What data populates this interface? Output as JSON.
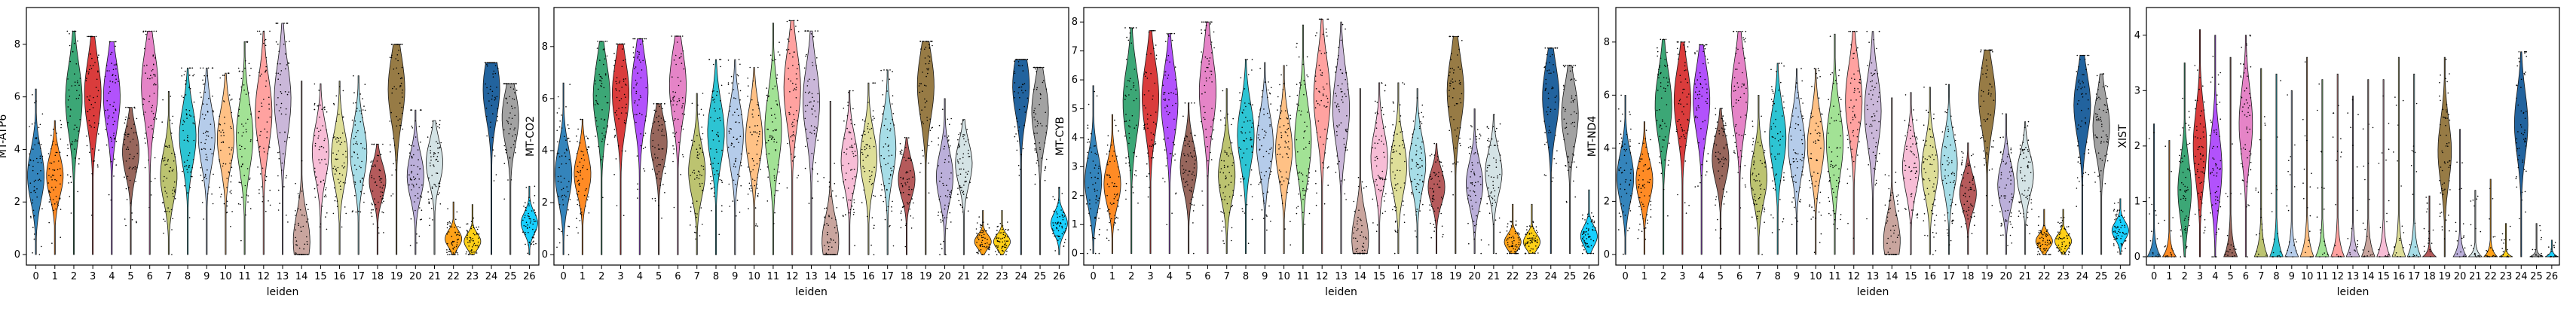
{
  "chart_data": [
    {
      "type": "violin",
      "ylabel": "MT-ATP6",
      "xlabel": "leiden",
      "ylim": [
        -0.4,
        9.4
      ],
      "yticks": [
        0,
        2,
        4,
        6,
        8
      ],
      "categories": [
        "0",
        "1",
        "2",
        "3",
        "4",
        "5",
        "6",
        "7",
        "8",
        "9",
        "10",
        "11",
        "12",
        "13",
        "14",
        "15",
        "16",
        "17",
        "18",
        "19",
        "20",
        "21",
        "22",
        "23",
        "24",
        "25",
        "26"
      ],
      "medians": [
        3.0,
        3.0,
        5.9,
        6.1,
        6.0,
        3.9,
        6.4,
        3.0,
        4.5,
        4.5,
        4.4,
        4.5,
        5.4,
        5.9,
        0.5,
        3.9,
        3.7,
        3.9,
        2.8,
        6.3,
        3.0,
        3.5,
        0.6,
        0.5,
        6.3,
        5.2,
        1.2
      ],
      "maxima": [
        6.3,
        5.1,
        8.5,
        8.3,
        8.1,
        5.6,
        8.5,
        6.2,
        7.1,
        7.1,
        6.9,
        8.1,
        8.5,
        8.8,
        6.6,
        6.5,
        6.6,
        6.8,
        4.2,
        8.0,
        5.5,
        5.1,
        2.0,
        1.9,
        7.3,
        6.5,
        2.6
      ]
    },
    {
      "type": "violin",
      "ylabel": "MT-CO2",
      "xlabel": "leiden",
      "ylim": [
        -0.4,
        9.5
      ],
      "yticks": [
        0,
        2,
        4,
        6,
        8
      ],
      "categories": [
        "0",
        "1",
        "2",
        "3",
        "4",
        "5",
        "6",
        "7",
        "8",
        "9",
        "10",
        "11",
        "12",
        "13",
        "14",
        "15",
        "16",
        "17",
        "18",
        "19",
        "20",
        "21",
        "22",
        "23",
        "24",
        "25",
        "26"
      ],
      "medians": [
        3.1,
        3.1,
        6.1,
        6.2,
        6.3,
        4.3,
        6.5,
        3.2,
        4.7,
        4.6,
        4.5,
        4.8,
        6.4,
        5.9,
        0.5,
        3.6,
        3.7,
        4.1,
        2.9,
        6.5,
        3.0,
        3.5,
        0.5,
        0.5,
        6.5,
        5.5,
        1.2
      ],
      "maxima": [
        6.6,
        5.2,
        8.2,
        8.1,
        8.3,
        5.8,
        8.4,
        6.2,
        7.5,
        7.5,
        7.2,
        8.9,
        9.0,
        8.6,
        5.9,
        6.3,
        6.6,
        7.1,
        4.5,
        8.2,
        6.0,
        5.2,
        1.7,
        1.7,
        7.5,
        7.2,
        2.6
      ]
    },
    {
      "type": "violin",
      "ylabel": "MT-CYB",
      "xlabel": "leiden",
      "ylim": [
        -0.4,
        8.5
      ],
      "yticks": [
        0,
        1,
        2,
        3,
        4,
        5,
        6,
        7,
        8
      ],
      "categories": [
        "0",
        "1",
        "2",
        "3",
        "4",
        "5",
        "6",
        "7",
        "8",
        "9",
        "10",
        "11",
        "12",
        "13",
        "14",
        "15",
        "16",
        "17",
        "18",
        "19",
        "20",
        "21",
        "22",
        "23",
        "24",
        "25",
        "26"
      ],
      "medians": [
        2.5,
        2.4,
        5.2,
        5.4,
        5.2,
        3.0,
        5.6,
        2.7,
        4.1,
        3.8,
        3.6,
        3.9,
        5.4,
        5.0,
        0.5,
        3.3,
        3.0,
        3.1,
        2.3,
        5.6,
        2.4,
        2.8,
        0.4,
        0.4,
        5.4,
        4.8,
        0.6
      ],
      "maxima": [
        5.8,
        4.8,
        7.8,
        7.7,
        7.6,
        5.2,
        8.0,
        5.7,
        6.7,
        6.6,
        6.5,
        7.9,
        8.1,
        8.0,
        5.7,
        5.9,
        5.9,
        5.7,
        3.8,
        7.5,
        5.0,
        4.8,
        1.7,
        1.7,
        7.1,
        6.5,
        2.2
      ]
    },
    {
      "type": "violin",
      "ylabel": "MT-ND4",
      "xlabel": "leiden",
      "ylim": [
        -0.4,
        9.3
      ],
      "yticks": [
        0,
        2,
        4,
        6,
        8
      ],
      "categories": [
        "0",
        "1",
        "2",
        "3",
        "4",
        "5",
        "6",
        "7",
        "8",
        "9",
        "10",
        "11",
        "12",
        "13",
        "14",
        "15",
        "16",
        "17",
        "18",
        "19",
        "20",
        "21",
        "22",
        "23",
        "24",
        "25",
        "26"
      ],
      "medians": [
        2.9,
        2.8,
        5.6,
        5.8,
        5.8,
        3.6,
        6.0,
        2.9,
        4.4,
        4.1,
        4.1,
        4.2,
        5.8,
        5.4,
        0.5,
        3.3,
        3.2,
        3.4,
        2.3,
        5.9,
        2.6,
        3.0,
        0.5,
        0.5,
        5.6,
        4.8,
        0.9
      ],
      "maxima": [
        6.0,
        5.0,
        8.1,
        8.0,
        7.9,
        5.5,
        8.4,
        6.0,
        7.2,
        7.0,
        7.0,
        8.3,
        8.4,
        8.4,
        5.9,
        6.1,
        6.3,
        6.4,
        4.2,
        7.7,
        5.3,
        5.0,
        1.7,
        1.7,
        7.5,
        6.8,
        2.1
      ]
    },
    {
      "type": "violin",
      "ylabel": "XIST",
      "xlabel": "leiden",
      "ylim": [
        -0.15,
        4.5
      ],
      "yticks": [
        0,
        1,
        2,
        3,
        4
      ],
      "categories": [
        "0",
        "1",
        "2",
        "3",
        "4",
        "5",
        "6",
        "7",
        "8",
        "9",
        "10",
        "11",
        "12",
        "13",
        "14",
        "15",
        "16",
        "17",
        "18",
        "19",
        "20",
        "21",
        "22",
        "23",
        "24",
        "25",
        "26"
      ],
      "medians": [
        0.0,
        0.0,
        1.2,
        2.0,
        1.6,
        0.0,
        2.4,
        0.0,
        0.0,
        0.0,
        0.0,
        0.0,
        0.0,
        0.0,
        0.0,
        0.0,
        0.0,
        0.0,
        0.0,
        1.9,
        0.0,
        0.0,
        0.0,
        0.0,
        2.4,
        0.0,
        0.0
      ],
      "maxima": [
        2.4,
        2.1,
        3.5,
        4.1,
        4.0,
        3.6,
        4.0,
        3.4,
        3.3,
        3.0,
        3.6,
        3.2,
        3.3,
        2.9,
        3.2,
        3.2,
        3.6,
        3.3,
        1.1,
        3.6,
        2.3,
        1.2,
        1.4,
        0.6,
        3.7,
        0.6,
        0.3
      ]
    }
  ],
  "colors": [
    "#1f77b4",
    "#ff7f0e",
    "#279e68",
    "#d62728",
    "#aa40fc",
    "#8c564b",
    "#e377c2",
    "#b5bd61",
    "#17becf",
    "#aec7e8",
    "#ffbb78",
    "#98df8a",
    "#ff9896",
    "#c5b0d5",
    "#c49c94",
    "#f7b6d2",
    "#dbdb8d",
    "#9edae5",
    "#ad494a",
    "#8c6d31",
    "#b4a7d6",
    "#d0e0e3",
    "#ff9900",
    "#ffcc00",
    "#0b5394",
    "#999999",
    "#00ccff"
  ]
}
